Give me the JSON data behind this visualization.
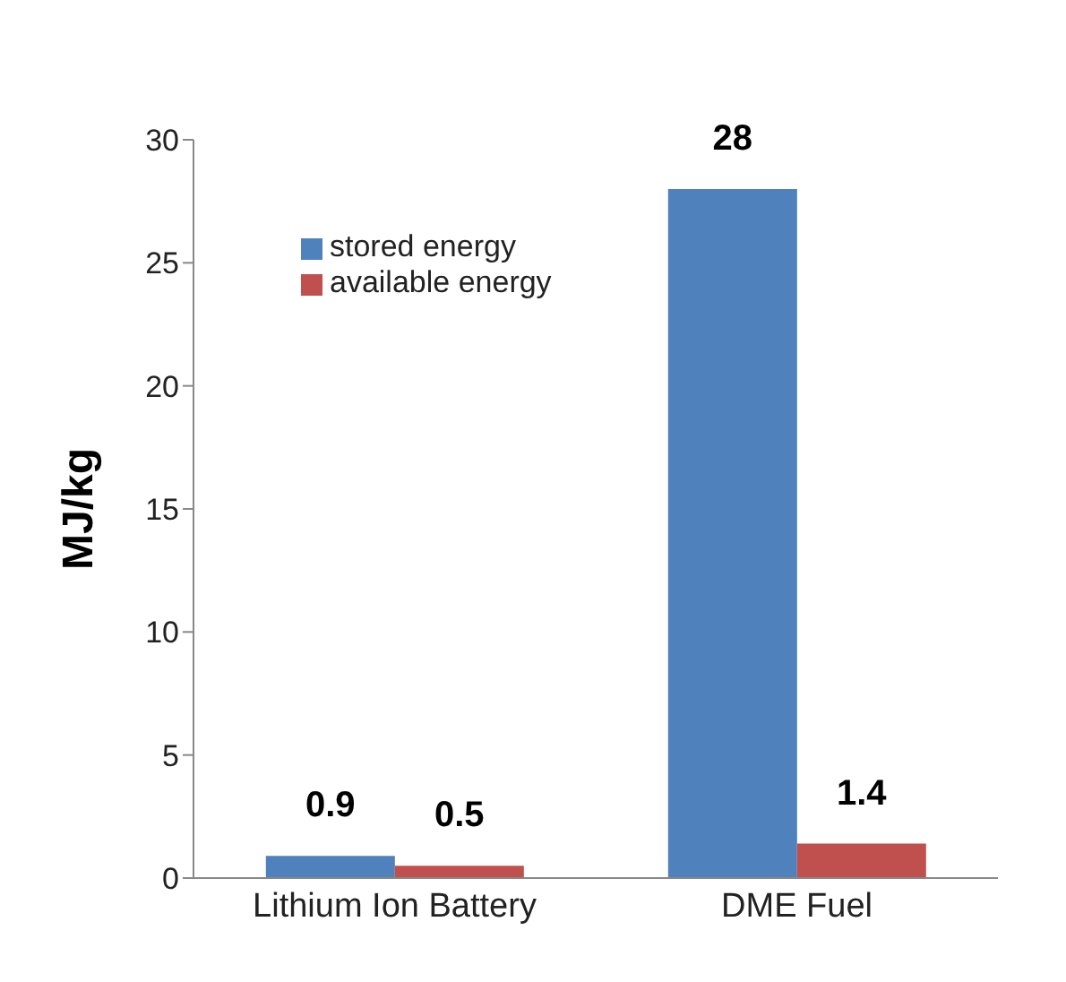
{
  "chart_data": {
    "type": "bar",
    "ylabel": "MJ/kg",
    "categories": [
      "Lithium Ion Battery",
      "DME Fuel"
    ],
    "series": [
      {
        "name": "stored energy",
        "color": "#4f81bd",
        "values": [
          0.9,
          28
        ]
      },
      {
        "name": "available energy",
        "color": "#c0504d",
        "values": [
          0.5,
          1.4
        ]
      }
    ],
    "ylim": [
      0,
      30
    ],
    "yticks": [
      0,
      5,
      10,
      15,
      20,
      25,
      30
    ],
    "grid": false,
    "legend": "top left",
    "data_labels": true
  }
}
